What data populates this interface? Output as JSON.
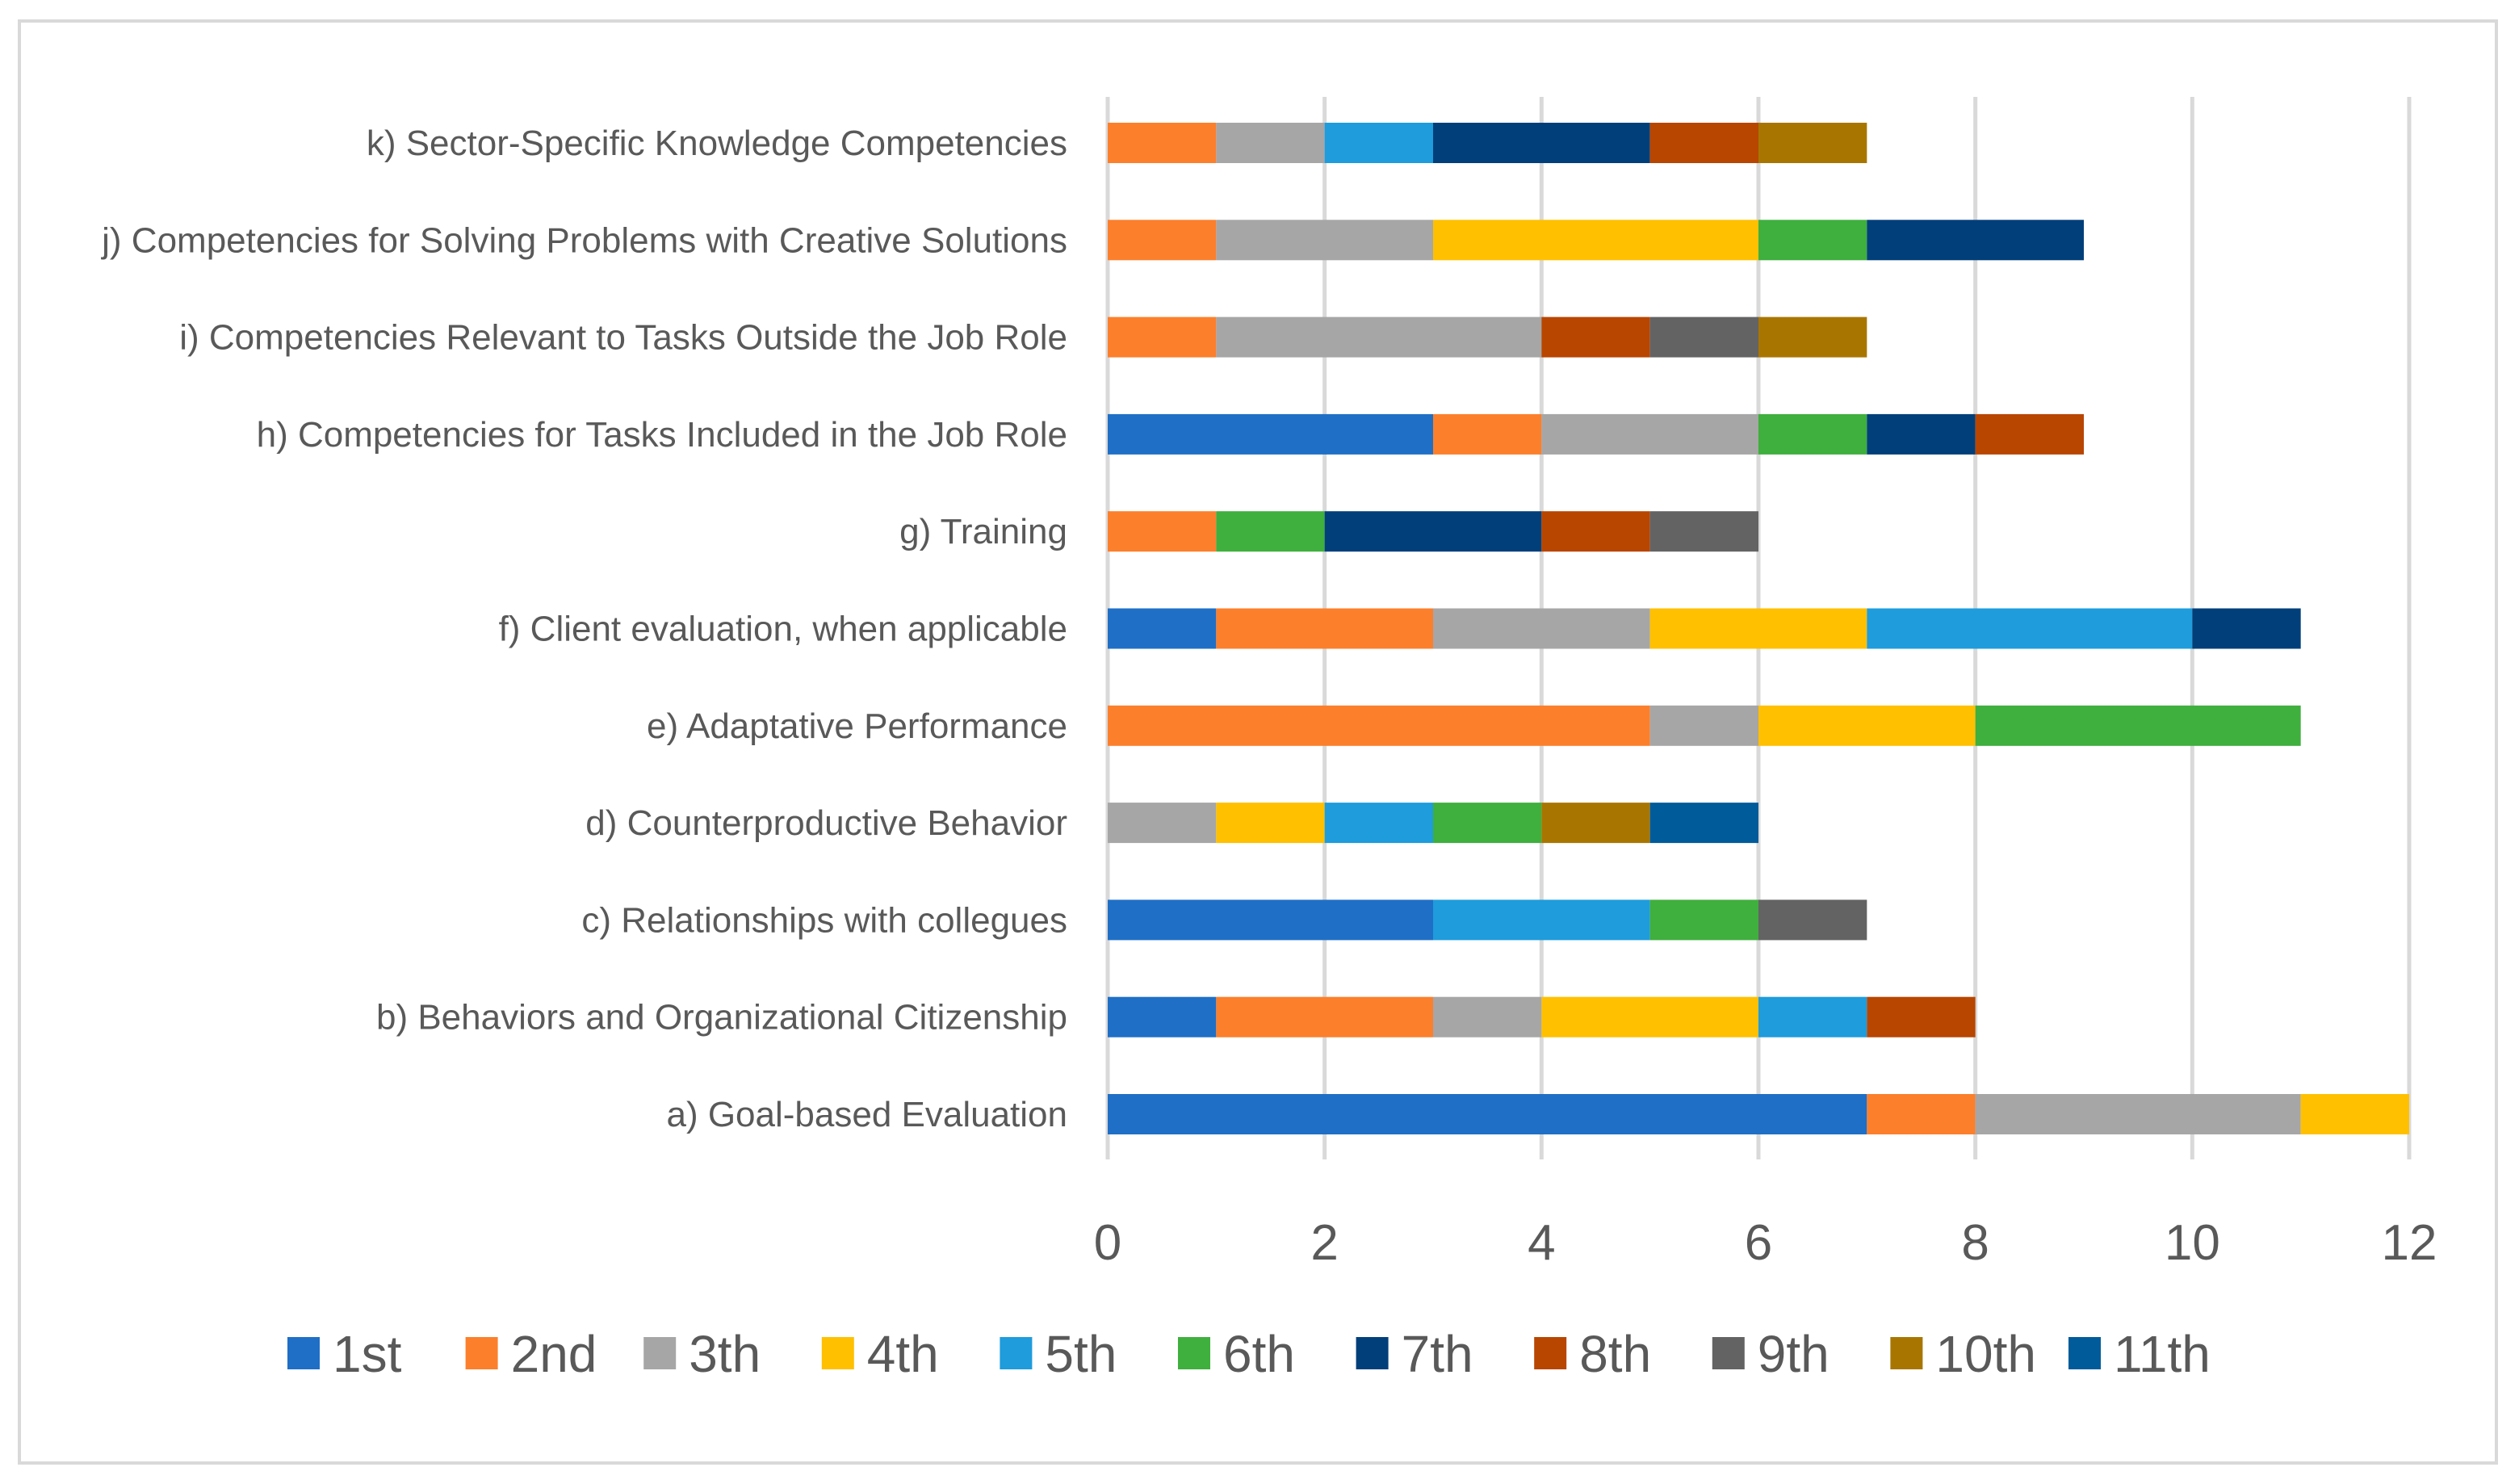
{
  "chart_data": {
    "type": "bar",
    "orientation": "horizontal",
    "stacked": true,
    "title": "",
    "xlabel": "",
    "ylabel": "",
    "xlim": [
      0,
      12
    ],
    "xticks": [
      "0",
      "2",
      "4",
      "6",
      "8",
      "10",
      "12"
    ],
    "grid": true,
    "legend_position": "bottom",
    "categories": [
      "a) Goal-based Evaluation",
      "b) Behaviors and Organizational Citizenship",
      "c) Relationships with collegues",
      "d) Counterproductive Behavior",
      "e) Adaptative Performance",
      "f) Client evaluation, when applicable",
      "g) Training",
      "h) Competencies for Tasks Included in the Job Role",
      "i) Competencies Relevant to Tasks Outside the Job Role",
      "j) Competencies for Solving Problems with Creative Solutions",
      "k) Sector-Specific Knowledge Competencies"
    ],
    "series": [
      {
        "name": "1st",
        "color": "#1f6fc6",
        "values": [
          7,
          1,
          3,
          0,
          0,
          1,
          0,
          3,
          0,
          0,
          0
        ]
      },
      {
        "name": "2nd",
        "color": "#fc7f2c",
        "values": [
          1,
          2,
          0,
          0,
          5,
          2,
          1,
          1,
          1,
          1,
          1
        ]
      },
      {
        "name": "3th",
        "color": "#a6a6a6",
        "values": [
          3,
          1,
          0,
          1,
          1,
          2,
          0,
          2,
          3,
          2,
          1
        ]
      },
      {
        "name": "4th",
        "color": "#ffc000",
        "values": [
          1,
          2,
          0,
          1,
          2,
          2,
          0,
          0,
          0,
          3,
          0
        ]
      },
      {
        "name": "5th",
        "color": "#1e9cdc",
        "values": [
          0,
          1,
          2,
          1,
          0,
          3,
          0,
          0,
          0,
          0,
          1
        ]
      },
      {
        "name": "6th",
        "color": "#3faf3e",
        "values": [
          0,
          0,
          1,
          1,
          3,
          0,
          1,
          1,
          0,
          1,
          0
        ]
      },
      {
        "name": "7th",
        "color": "#003f7a",
        "values": [
          0,
          0,
          0,
          0,
          0,
          1,
          2,
          1,
          0,
          2,
          2
        ]
      },
      {
        "name": "8th",
        "color": "#b84500",
        "values": [
          0,
          1,
          0,
          0,
          0,
          0,
          1,
          1,
          1,
          0,
          1
        ]
      },
      {
        "name": "9th",
        "color": "#636363",
        "values": [
          0,
          0,
          1,
          0,
          0,
          0,
          1,
          0,
          1,
          0,
          0
        ]
      },
      {
        "name": "10th",
        "color": "#a87600",
        "values": [
          0,
          0,
          0,
          1,
          0,
          0,
          0,
          0,
          1,
          0,
          1
        ]
      },
      {
        "name": "11th",
        "color": "#005b9a",
        "values": [
          0,
          0,
          0,
          1,
          0,
          0,
          0,
          0,
          0,
          0,
          0
        ]
      }
    ]
  }
}
